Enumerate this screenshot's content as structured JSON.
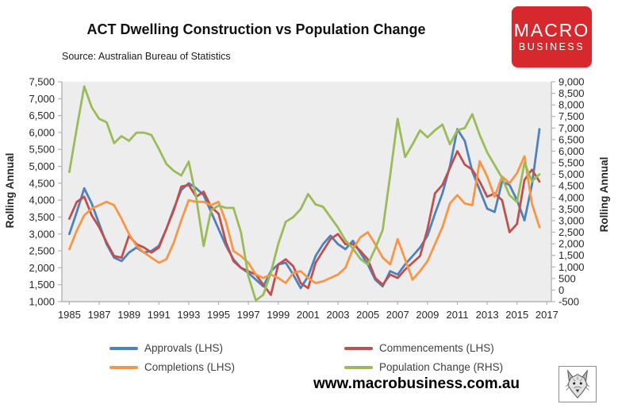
{
  "header": {
    "title": "ACT Dwelling Construction vs Population Change",
    "source": "Source: Australian Bureau of Statistics",
    "logo": {
      "line1": "MACRO",
      "line2": "BUSINESS",
      "bg_color": "#d7282e",
      "text_color": "#ffffff"
    }
  },
  "footer": {
    "url": "www.macrobusiness.com.au"
  },
  "chart_data": {
    "type": "line",
    "title": "ACT Dwelling Construction vs Population Change",
    "subtitle": "Source: Australian Bureau of Statistics",
    "grid": false,
    "legend_position": "bottom",
    "plot_bg": "#ededed",
    "axis_color": "#b3b3b3",
    "x_start": 1985,
    "x_step": 0.5,
    "x_ticks": [
      1985,
      1987,
      1989,
      1991,
      1993,
      1995,
      1997,
      1999,
      2001,
      2003,
      2005,
      2007,
      2009,
      2011,
      2013,
      2015,
      2017
    ],
    "y_left": {
      "label": "Rolling Annual",
      "min": 1000,
      "max": 7500,
      "tick_step": 500
    },
    "y_right": {
      "label": "Rolling Annual",
      "min": -500,
      "max": 9000,
      "tick_step": 500
    },
    "series": [
      {
        "name": "Approvals (LHS)",
        "axis": "left",
        "color": "#4F81BD",
        "values": [
          3000,
          3650,
          4350,
          3900,
          3300,
          2700,
          2300,
          2200,
          2450,
          2600,
          2450,
          2500,
          2650,
          3150,
          3750,
          4300,
          4500,
          4350,
          4150,
          3650,
          3150,
          2650,
          2250,
          2000,
          1850,
          1650,
          1450,
          1900,
          2100,
          2150,
          1800,
          1400,
          1750,
          2350,
          2700,
          2950,
          2700,
          2550,
          2800,
          2450,
          2100,
          1650,
          1450,
          1900,
          1800,
          2100,
          2350,
          2600,
          2950,
          3600,
          4200,
          5000,
          6100,
          5750,
          4850,
          4300,
          3750,
          3650,
          4550,
          4450,
          4000,
          3400,
          4450,
          6100
        ]
      },
      {
        "name": "Commencements (LHS)",
        "axis": "left",
        "color": "#C0504D",
        "values": [
          3450,
          3950,
          4100,
          3550,
          3200,
          2750,
          2350,
          2300,
          2950,
          2700,
          2600,
          2450,
          2600,
          3150,
          3700,
          4400,
          4450,
          4100,
          4250,
          3800,
          3600,
          2750,
          2200,
          2000,
          1900,
          1800,
          1500,
          1200,
          2100,
          2250,
          2050,
          1550,
          1400,
          2150,
          2500,
          2850,
          3000,
          2700,
          2700,
          2500,
          2250,
          1700,
          1500,
          1800,
          1700,
          1950,
          2150,
          2350,
          3150,
          4200,
          4450,
          4950,
          5450,
          5050,
          4900,
          4550,
          4100,
          4200,
          4000,
          3050,
          3300,
          4600,
          4900,
          4550
        ]
      },
      {
        "name": "Completions (LHS)",
        "axis": "left",
        "color": "#F79646",
        "values": [
          2550,
          3100,
          3550,
          3750,
          3850,
          3950,
          3850,
          3450,
          3000,
          2650,
          2450,
          2300,
          2150,
          2250,
          2750,
          3400,
          4000,
          3950,
          3950,
          3850,
          3950,
          3350,
          2500,
          2350,
          2150,
          1800,
          1700,
          1800,
          1700,
          1550,
          1850,
          1900,
          1700,
          1550,
          1600,
          1700,
          1800,
          2000,
          2550,
          2900,
          3050,
          2700,
          2300,
          2100,
          2850,
          2250,
          1650,
          1900,
          2200,
          2700,
          3200,
          3900,
          4150,
          3900,
          3850,
          5150,
          4700,
          4100,
          4700,
          4500,
          4800,
          5300,
          3900,
          3200
        ]
      },
      {
        "name": "Population Change (RHS)",
        "axis": "right",
        "color": "#9BBB59",
        "values": [
          5100,
          7000,
          8800,
          7900,
          7400,
          7250,
          6350,
          6650,
          6450,
          6800,
          6800,
          6700,
          6100,
          5450,
          5150,
          4950,
          5550,
          4000,
          1900,
          3450,
          3650,
          3550,
          3550,
          2500,
          600,
          -450,
          -200,
          750,
          2000,
          2950,
          3150,
          3500,
          4150,
          3700,
          3600,
          3150,
          2700,
          2150,
          1800,
          1350,
          1100,
          1800,
          2600,
          4950,
          7400,
          5750,
          6300,
          6900,
          6600,
          6900,
          7150,
          6300,
          6900,
          7000,
          7600,
          6700,
          5950,
          5400,
          4850,
          4100,
          3800,
          5500,
          4700,
          5000
        ]
      }
    ]
  }
}
